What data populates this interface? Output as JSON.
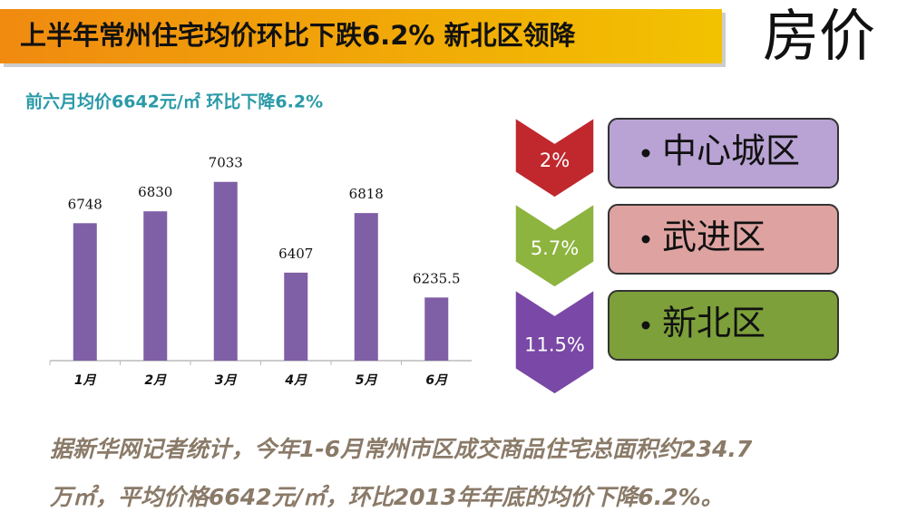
{
  "header": {
    "title": "上半年常州住宅均价环比下跌6.2% 新北区领降",
    "tag": "房价"
  },
  "chart_data": {
    "type": "bar",
    "title": "前六月均价6642元/㎡ 环比下降6.2%",
    "categories": [
      "1月",
      "2月",
      "3月",
      "4月",
      "5月",
      "6月"
    ],
    "values": [
      6748,
      6830,
      7033,
      6407,
      6818,
      6235.5
    ],
    "color": "#7f5fa6",
    "ylim": [
      5800,
      7200
    ]
  },
  "districts": [
    {
      "change": "2%",
      "name": "中心城区"
    },
    {
      "change": "5.7%",
      "name": "武进区"
    },
    {
      "change": "11.5%",
      "name": "新北区"
    }
  ],
  "footer": {
    "lines": [
      "据新华网记者统计，今年1-6月常州市区成交商品住宅总面积约234.7",
      "万㎡，平均价格6642元/㎡，环比2013年年底的均价下降6.2%。"
    ]
  }
}
